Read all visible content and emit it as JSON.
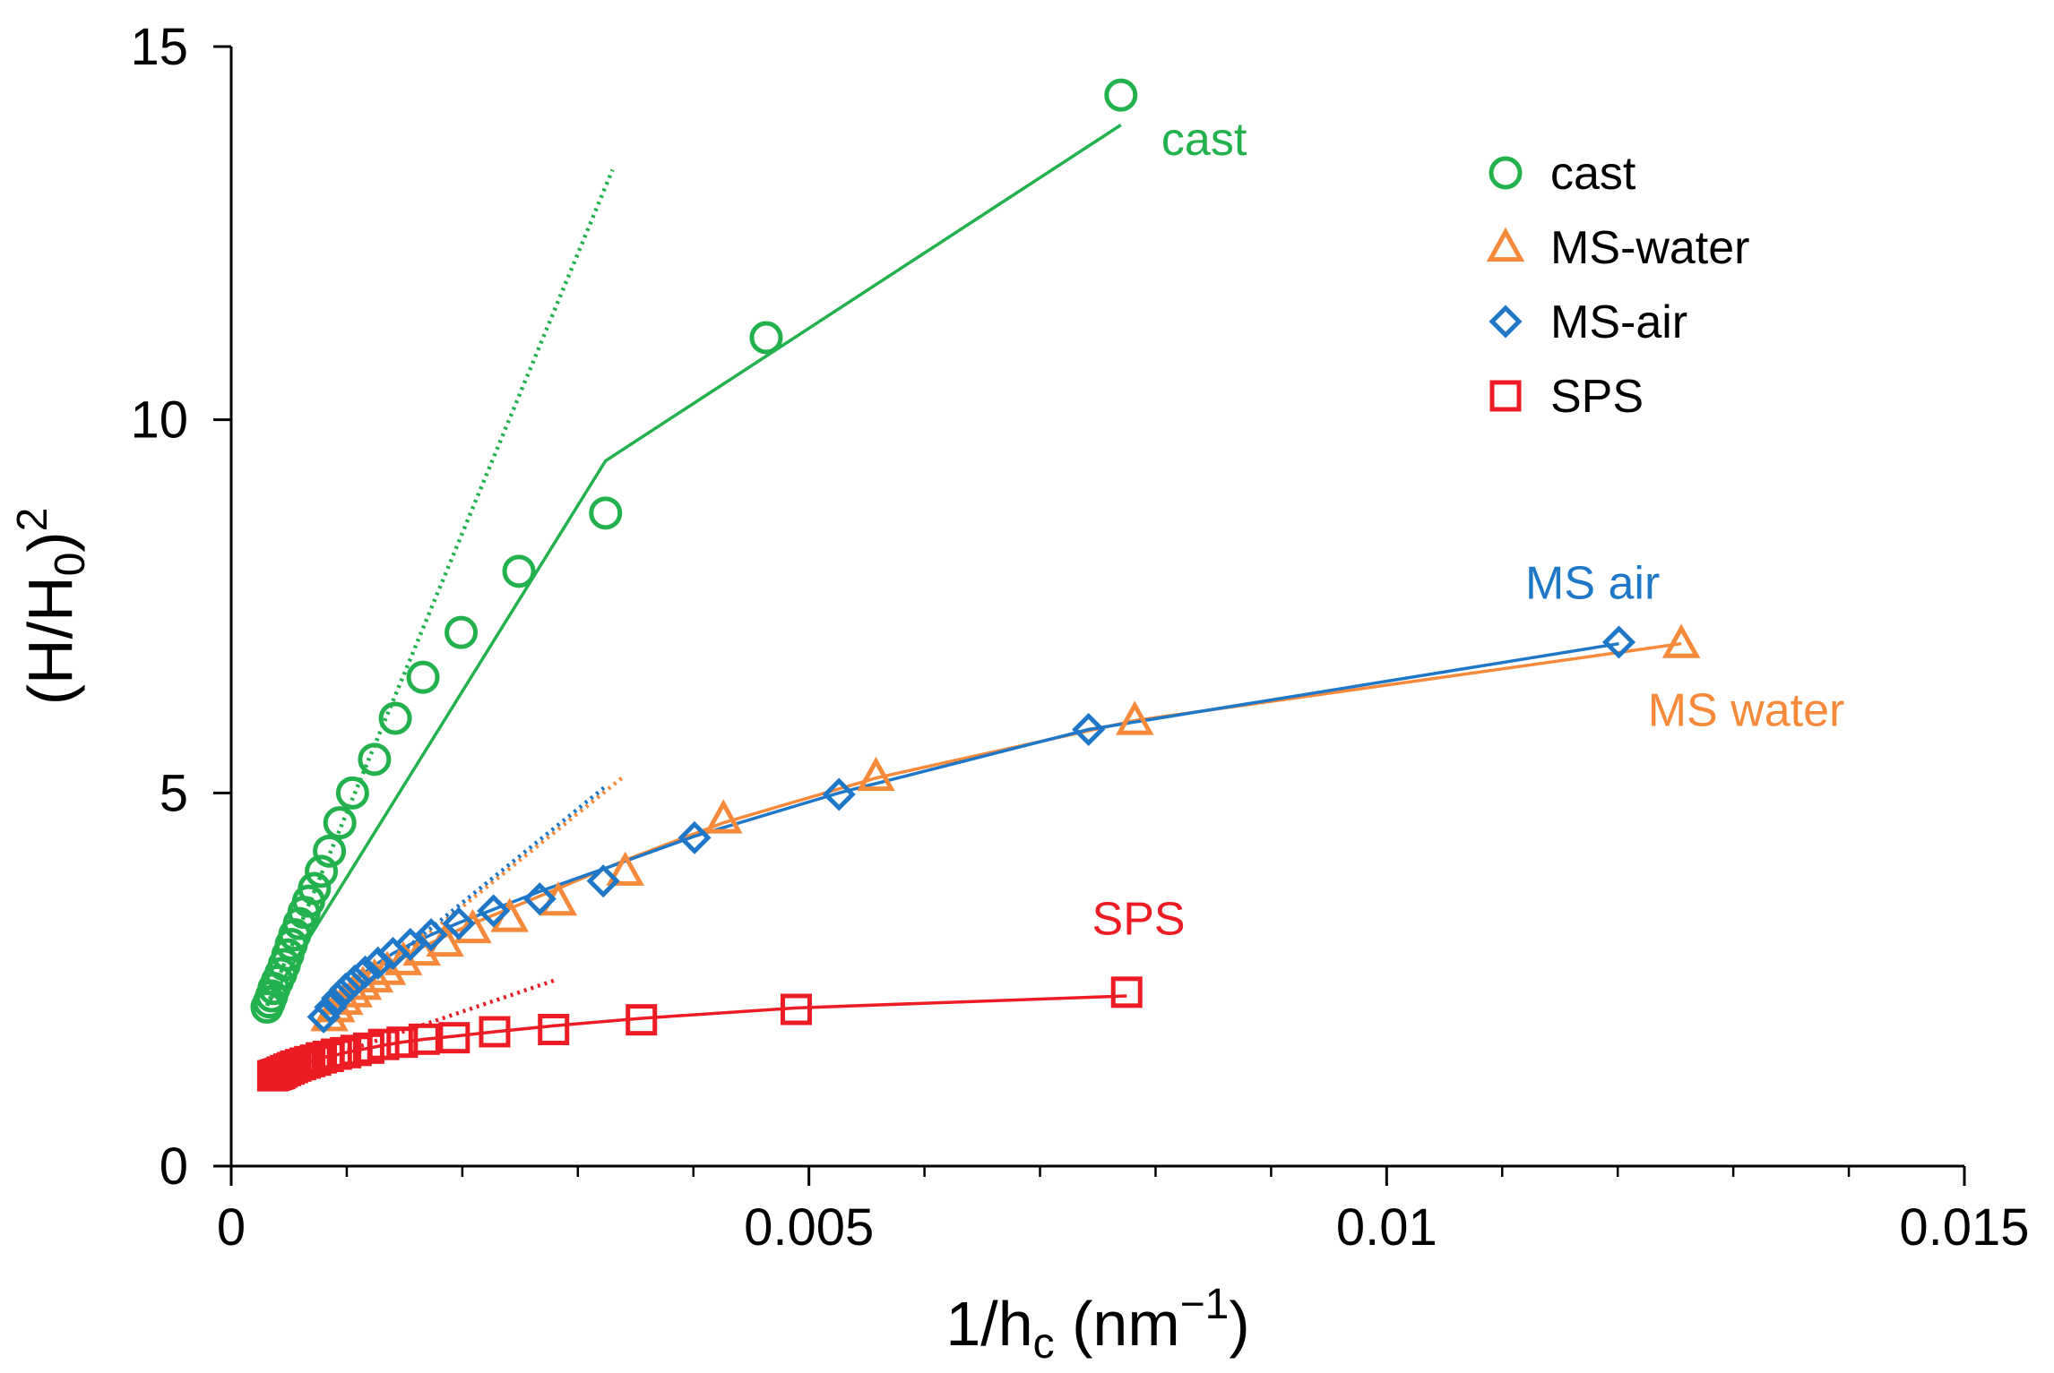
{
  "chart_data": {
    "type": "scatter",
    "title": "",
    "xlabel": {
      "main": "1/h",
      "sub": "c",
      "unit": " (nm",
      "sup": "−1",
      "end": ")"
    },
    "ylabel": {
      "open": "(H/H",
      "sub": "0",
      "close": ")",
      "sup": "2"
    },
    "xlim": [
      0,
      0.015
    ],
    "ylim": [
      0,
      15
    ],
    "xticks": [
      0,
      0.005,
      0.01,
      0.015
    ],
    "xtick_labels": [
      "0",
      "0.005",
      "0.01",
      "0.015"
    ],
    "yticks": [
      0,
      5,
      10,
      15
    ],
    "ytick_labels": [
      "0",
      "5",
      "10",
      "15"
    ],
    "x_minor_step": 0.001,
    "grid": false,
    "legend_position": "top-right",
    "series": [
      {
        "name": "cast",
        "marker": "circle",
        "color": "#22b14c",
        "x": [
          0.0077,
          0.00463,
          0.00324,
          0.00249,
          0.00199,
          0.00166,
          0.00142,
          0.00124,
          0.00105,
          0.00094,
          0.00085,
          0.00078,
          0.00072,
          0.00067,
          0.00063,
          0.00059,
          0.00055,
          0.00052,
          0.00049,
          0.00046,
          0.00043,
          0.0004,
          0.00037,
          0.00035,
          0.00033,
          0.00031
        ],
        "y": [
          14.35,
          11.1,
          8.75,
          7.97,
          7.15,
          6.55,
          6.0,
          5.45,
          5.0,
          4.6,
          4.22,
          3.95,
          3.72,
          3.55,
          3.4,
          3.25,
          3.1,
          2.97,
          2.83,
          2.7,
          2.58,
          2.48,
          2.38,
          2.28,
          2.2,
          2.13
        ],
        "fit_x": [
          0.0077,
          0.00324,
          0.00031
        ],
        "fit_y": [
          13.95,
          9.45,
          2.15
        ],
        "tangent_x": [
          0.00031,
          0.0033
        ],
        "tangent_y": [
          2.15,
          13.35
        ]
      },
      {
        "name": "MS-water",
        "marker": "triangle",
        "color": "#f7893a",
        "x": [
          0.01255,
          0.00782,
          0.00558,
          0.00426,
          0.00341,
          0.00283,
          0.00241,
          0.00209,
          0.00185,
          0.00165,
          0.00149,
          0.00135,
          0.00124,
          0.00114,
          0.00106,
          0.00098,
          0.00091,
          0.00085
        ],
        "y": [
          7.0,
          5.97,
          5.22,
          4.65,
          3.95,
          3.55,
          3.33,
          3.18,
          3.0,
          2.88,
          2.75,
          2.62,
          2.52,
          2.42,
          2.32,
          2.22,
          2.12,
          2.0
        ],
        "fit_x": [
          0.01255,
          0.00782,
          0.00558,
          0.00426,
          0.00341,
          0.00283,
          0.00241,
          0.00209,
          0.00185,
          0.00165,
          0.00149,
          0.00135,
          0.00124,
          0.00114,
          0.00106,
          0.00098,
          0.00091,
          0.00085
        ],
        "fit_y": [
          7.0,
          5.97,
          5.2,
          4.6,
          4.1,
          3.72,
          3.45,
          3.25,
          3.08,
          2.93,
          2.79,
          2.66,
          2.55,
          2.44,
          2.34,
          2.24,
          2.14,
          2.04
        ],
        "tangent_x": [
          0.00085,
          0.00338
        ],
        "tangent_y": [
          2.04,
          5.2
        ]
      },
      {
        "name": "MS-air",
        "marker": "diamond",
        "color": "#1f77c8",
        "x": [
          0.01201,
          0.00742,
          0.00526,
          0.00401,
          0.00322,
          0.00267,
          0.00227,
          0.00197,
          0.00173,
          0.00155,
          0.0014,
          0.00127,
          0.00116,
          0.00107,
          0.00099,
          0.00092,
          0.00086,
          0.0008
        ],
        "y": [
          7.02,
          5.85,
          4.98,
          4.4,
          3.82,
          3.58,
          3.42,
          3.25,
          3.1,
          2.97,
          2.85,
          2.72,
          2.6,
          2.48,
          2.37,
          2.25,
          2.13,
          2.0
        ],
        "fit_x": [
          0.01201,
          0.00742,
          0.00526,
          0.00401,
          0.00322,
          0.00267,
          0.00227,
          0.00197,
          0.00173,
          0.00155,
          0.0014,
          0.00127,
          0.00116,
          0.00107,
          0.00099,
          0.00092,
          0.00086,
          0.0008
        ],
        "fit_y": [
          7.0,
          5.85,
          5.0,
          4.42,
          3.98,
          3.68,
          3.44,
          3.26,
          3.1,
          2.97,
          2.85,
          2.72,
          2.6,
          2.48,
          2.37,
          2.25,
          2.13,
          2.02
        ],
        "tangent_x": [
          0.0008,
          0.00325
        ],
        "tangent_y": [
          2.02,
          5.1
        ]
      },
      {
        "name": "SPS",
        "marker": "square",
        "color": "#ed1c24",
        "x": [
          0.00775,
          0.00489,
          0.00355,
          0.00279,
          0.00228,
          0.00193,
          0.00167,
          0.00148,
          0.00132,
          0.00119,
          0.00108,
          0.00099,
          0.00091,
          0.00084,
          0.00078,
          0.00073,
          0.00068,
          0.00064,
          0.0006,
          0.00056,
          0.00053,
          0.0005,
          0.00047,
          0.00044,
          0.00042,
          0.0004,
          0.00038,
          0.00036
        ],
        "y": [
          2.33,
          2.1,
          1.96,
          1.83,
          1.8,
          1.72,
          1.7,
          1.66,
          1.63,
          1.58,
          1.55,
          1.52,
          1.5,
          1.47,
          1.45,
          1.42,
          1.4,
          1.38,
          1.36,
          1.34,
          1.32,
          1.3,
          1.28,
          1.26,
          1.24,
          1.23,
          1.22,
          1.21
        ],
        "fit_x": [
          0.00775,
          0.00489,
          0.00355,
          0.00279,
          0.00228,
          0.00193,
          0.00167,
          0.00148,
          0.00132,
          0.00119,
          0.00108,
          0.00099,
          0.00091,
          0.00084,
          0.00078,
          0.00073,
          0.00068,
          0.00064,
          0.0006,
          0.00056,
          0.00053,
          0.0005,
          0.00047,
          0.00044,
          0.00042,
          0.0004,
          0.00038,
          0.00036
        ],
        "fit_y": [
          2.28,
          2.12,
          1.98,
          1.88,
          1.8,
          1.74,
          1.7,
          1.66,
          1.62,
          1.58,
          1.55,
          1.52,
          1.49,
          1.47,
          1.45,
          1.42,
          1.4,
          1.38,
          1.36,
          1.34,
          1.32,
          1.3,
          1.28,
          1.26,
          1.25,
          1.23,
          1.22,
          1.21
        ],
        "tangent_x": [
          0.00036,
          0.00282
        ],
        "tangent_y": [
          1.21,
          2.5
        ]
      }
    ],
    "annotations": [
      {
        "text": "cast",
        "x": 0.00805,
        "y": 13.55,
        "color": "#22b14c"
      },
      {
        "text": "MS air",
        "x": 0.0112,
        "y": 7.6,
        "color": "#1f77c8"
      },
      {
        "text": "MS water",
        "x": 0.01226,
        "y": 5.9,
        "color": "#f7893a"
      },
      {
        "text": "SPS",
        "x": 0.00745,
        "y": 3.1,
        "color": "#ed1c24"
      }
    ]
  }
}
